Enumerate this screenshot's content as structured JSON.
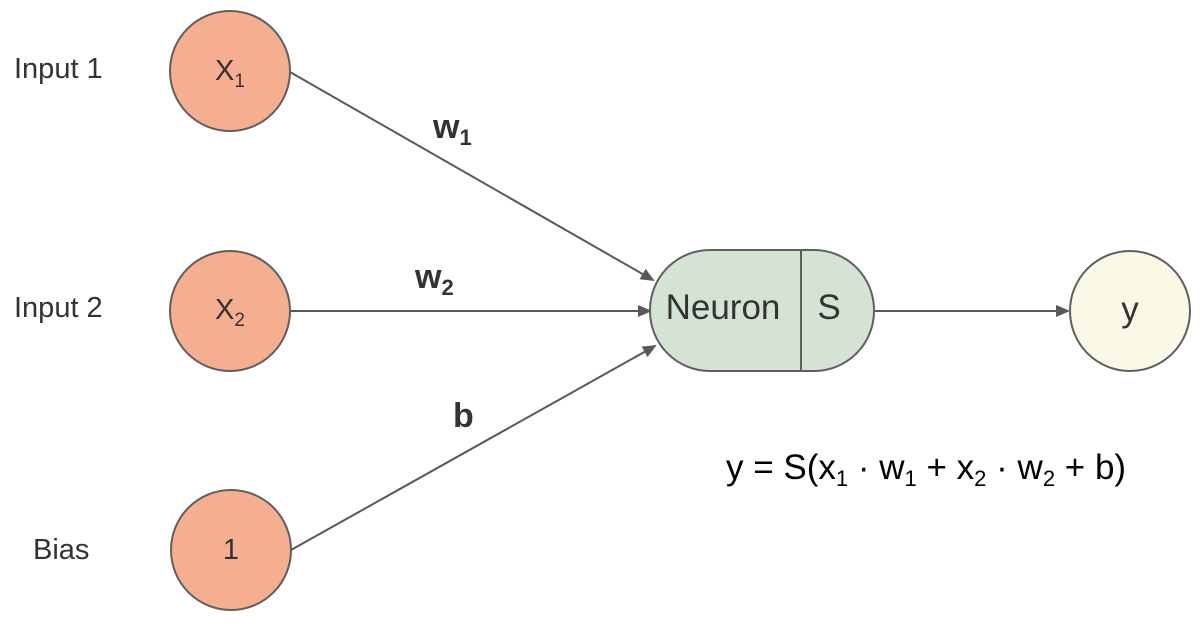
{
  "inputs": [
    {
      "label": "Input 1",
      "node_main": "X",
      "node_sub": "1"
    },
    {
      "label": "Input 2",
      "node_main": "X",
      "node_sub": "2"
    },
    {
      "label": "Bias",
      "node_main": "1",
      "node_sub": ""
    }
  ],
  "weights": {
    "w1": {
      "main": "w",
      "sub": "1"
    },
    "w2": {
      "main": "w",
      "sub": "2"
    },
    "b": {
      "main": "b",
      "sub": ""
    }
  },
  "neuron": {
    "label": "Neuron",
    "activation": "S"
  },
  "output": {
    "label": "y"
  },
  "formula": {
    "y_eq_s": "y = S(x",
    "sub1": "1",
    "dot_w": " · w",
    "sub2": "1",
    "plus_x": " + x",
    "sub3": "2",
    "dot_w2": " · w",
    "sub4": "2",
    "plus_b": " + b)"
  },
  "colors": {
    "input_fill": "#F6AE91",
    "input_stroke": "#5F5F5F",
    "neuron_fill": "#D5E3D5",
    "output_fill": "#FAF8E6",
    "edge": "#595959",
    "text": "#333333"
  }
}
